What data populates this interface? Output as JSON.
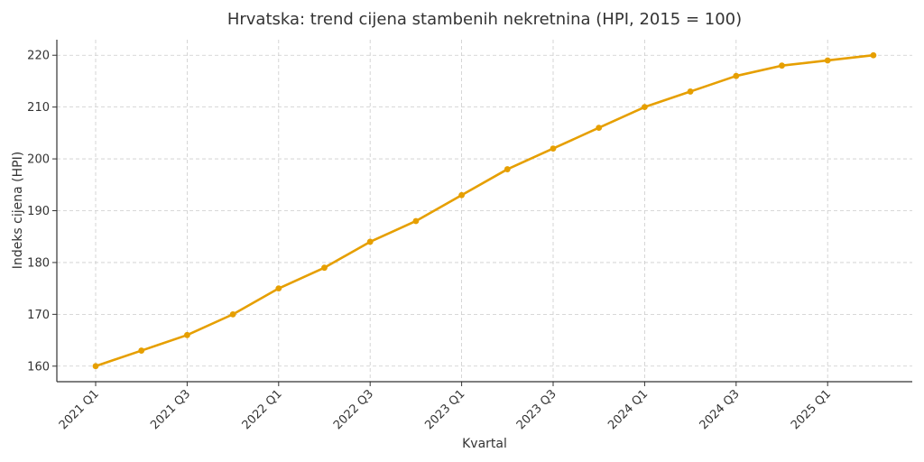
{
  "chart_data": {
    "type": "line",
    "title": "Hrvatska: trend cijena stambenih nekretnina (HPI, 2015 = 100)",
    "xlabel": "Kvartal",
    "ylabel": "Indeks cijena (HPI)",
    "categories": [
      "2021 Q1",
      "2021 Q2",
      "2021 Q3",
      "2021 Q4",
      "2022 Q1",
      "2022 Q2",
      "2022 Q3",
      "2022 Q4",
      "2023 Q1",
      "2023 Q2",
      "2023 Q3",
      "2023 Q4",
      "2024 Q1",
      "2024 Q2",
      "2024 Q3",
      "2024 Q4",
      "2025 Q1",
      "2025 Q2"
    ],
    "x_tick_labels": [
      "2021 Q1",
      "2021 Q3",
      "2022 Q1",
      "2022 Q3",
      "2023 Q1",
      "2023 Q3",
      "2024 Q1",
      "2024 Q3",
      "2025 Q1"
    ],
    "series": [
      {
        "values": [
          160,
          163,
          166,
          170,
          175,
          179,
          184,
          188,
          193,
          198,
          202,
          206,
          210,
          213,
          216,
          218,
          219,
          220
        ]
      }
    ],
    "ylim": [
      157,
      223
    ],
    "y_ticks": [
      160,
      170,
      180,
      190,
      200,
      210,
      220
    ],
    "grid": true,
    "color": "#E69F00"
  }
}
